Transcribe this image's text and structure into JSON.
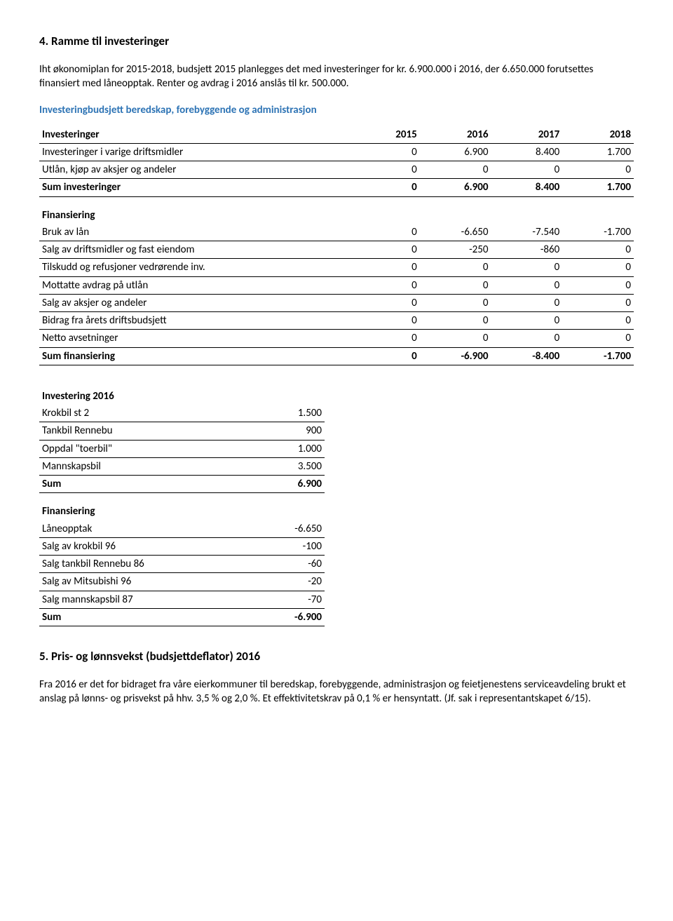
{
  "sec4": {
    "title": "4.  Ramme til investeringer",
    "para": "Iht økonomiplan for 2015-2018, budsjett 2015 planlegges det med investeringer for kr. 6.900.000 i 2016, der 6.650.000 forutsettes finansiert med låneopptak. Renter og avdrag i 2016 anslås til kr. 500.000.",
    "subhead": "Investeringbudsjett beredskap, forebyggende og administrasjon",
    "tbl1": {
      "hdr": [
        "Investeringer",
        "2015",
        "2016",
        "2017",
        "2018"
      ],
      "rows": [
        [
          "Investeringer i varige driftsmidler",
          "0",
          "6.900",
          "8.400",
          "1.700"
        ],
        [
          "Utlån, kjøp av aksjer og andeler",
          "0",
          "0",
          "0",
          "0"
        ]
      ],
      "sum": [
        "Sum investeringer",
        "0",
        "6.900",
        "8.400",
        "1.700"
      ]
    },
    "tbl2": {
      "title": "Finansiering",
      "rows": [
        [
          "Bruk av lån",
          "0",
          "-6.650",
          "-7.540",
          "-1.700"
        ],
        [
          "Salg av driftsmidler og fast eiendom",
          "0",
          "-250",
          "-860",
          "0"
        ],
        [
          "Tilskudd og refusjoner vedrørende inv.",
          "0",
          "0",
          "0",
          "0"
        ],
        [
          "Mottatte avdrag på utlån",
          "0",
          "0",
          "0",
          "0"
        ],
        [
          "Salg av aksjer og andeler",
          "0",
          "0",
          "0",
          "0"
        ],
        [
          "Bidrag fra årets driftsbudsjett",
          "0",
          "0",
          "0",
          "0"
        ],
        [
          "Netto avsetninger",
          "0",
          "0",
          "0",
          "0"
        ]
      ],
      "sum": [
        "Sum finansiering",
        "0",
        "-6.900",
        "-8.400",
        "-1.700"
      ]
    },
    "tbl3": {
      "title": "Investering 2016",
      "rows": [
        [
          "Krokbil st 2",
          "1.500"
        ],
        [
          "Tankbil Rennebu",
          "900"
        ],
        [
          "Oppdal \"toerbil\"",
          "1.000"
        ],
        [
          "Mannskapsbil",
          "3.500"
        ]
      ],
      "sum": [
        "Sum",
        "6.900"
      ]
    },
    "tbl4": {
      "title": "Finansiering",
      "rows": [
        [
          "Låneopptak",
          "-6.650"
        ],
        [
          "Salg av krokbil 96",
          "-100"
        ],
        [
          "Salg tankbil Rennebu 86",
          "-60"
        ],
        [
          "Salg av Mitsubishi 96",
          "-20"
        ],
        [
          "Salg mannskapsbil 87",
          "-70"
        ]
      ],
      "sum": [
        "Sum",
        "-6.900"
      ]
    }
  },
  "sec5": {
    "title": "5.  Pris- og lønnsvekst (budsjettdeflator) 2016",
    "para": "Fra 2016 er det for bidraget fra våre eierkommuner til beredskap, forebyggende, administrasjon og feietjenestens serviceavdeling brukt et anslag på lønns- og prisvekst på hhv. 3,5 % og 2,0 %. Et effektivitetskrav på 0,1 % er hensyntatt. (Jf. sak i representantskapet 6/15)."
  }
}
